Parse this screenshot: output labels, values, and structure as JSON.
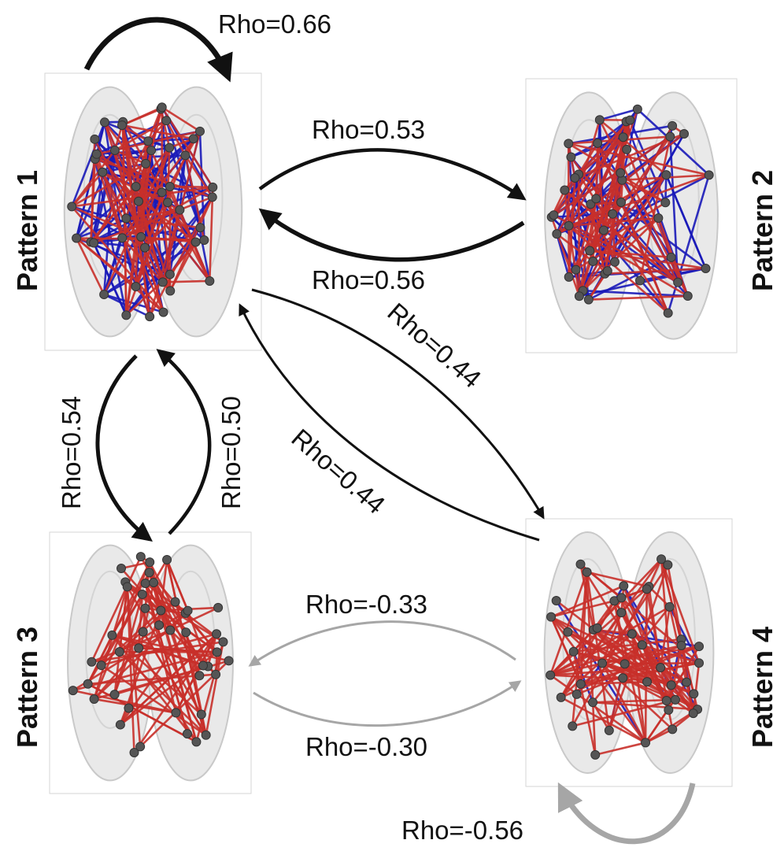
{
  "patterns": [
    {
      "id": "p1",
      "label": "Pattern 1"
    },
    {
      "id": "p2",
      "label": "Pattern 2"
    },
    {
      "id": "p3",
      "label": "Pattern 3"
    },
    {
      "id": "p4",
      "label": "Pattern 4"
    }
  ],
  "colors": {
    "positive_edge": "#c8302a",
    "negative_edge": "#1a1ab8",
    "node": "#555555",
    "positive_arrow": "#111111",
    "negative_arrow": "#a6a6a6"
  },
  "links": [
    {
      "from": "p1",
      "to": "p1",
      "label": "Rho=0.66"
    },
    {
      "from": "p1",
      "to": "p2",
      "label": "Rho=0.53"
    },
    {
      "from": "p2",
      "to": "p1",
      "label": "Rho=0.56"
    },
    {
      "from": "p1",
      "to": "p3",
      "label": "Rho=0.54"
    },
    {
      "from": "p3",
      "to": "p1",
      "label": "Rho=0.50"
    },
    {
      "from": "p1",
      "to": "p4",
      "label": "Rho=0.44"
    },
    {
      "from": "p4",
      "to": "p1",
      "label": "Rho=0.44"
    },
    {
      "from": "p4",
      "to": "p3",
      "label": "Rho=-0.33"
    },
    {
      "from": "p3",
      "to": "p4",
      "label": "Rho=-0.30"
    },
    {
      "from": "p4",
      "to": "p4",
      "label": "Rho=-0.56"
    }
  ]
}
